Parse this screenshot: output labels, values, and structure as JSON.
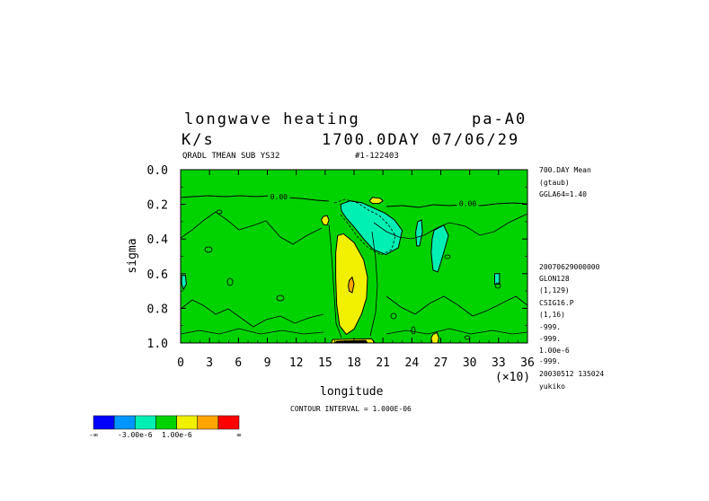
{
  "header": {
    "title_left": "longwave heating",
    "title_right": "pa-A0",
    "units": "K/s",
    "time": "1700.0DAY 07/06/29",
    "sub_left": "QRADL TMEAN SUB YS32",
    "sub_right": "#1-122403"
  },
  "side_info": [
    "700.DAY Mean",
    "(gtaub)",
    "GGLA64=1.40",
    "20070629000000",
    "GLON128",
    "(1,129)",
    "CSIG16.P",
    "(1,16)",
    "-999.",
    "-999.",
    "1.00e-6",
    "-999.",
    "20030512 135024",
    "yukiko"
  ],
  "contour_interval": "CONTOUR INTERVAL = 1.000E-06",
  "legend": {
    "labels": [
      "-∞",
      "-3.00e-6",
      "1.00e-6",
      "∞"
    ],
    "colors": [
      "#0000ff",
      "#0096ff",
      "#00f0b4",
      "#00d200",
      "#f0f000",
      "#ffa500",
      "#ff0000"
    ]
  },
  "chart_data": {
    "type": "heatmap",
    "title": "longwave heating",
    "xlabel": "longitude",
    "ylabel": "sigma",
    "x_multiplier_label": "(×10)",
    "xlim": [
      0,
      36
    ],
    "ylim": [
      1.0,
      0.0
    ],
    "x_ticks": [
      0,
      3,
      6,
      9,
      12,
      15,
      18,
      21,
      24,
      27,
      30,
      33,
      36
    ],
    "y_ticks": [
      0.0,
      0.2,
      0.4,
      0.6,
      0.8,
      1.0
    ],
    "x_tick_labels": [
      "0",
      "3",
      "6",
      "9",
      "12",
      "15",
      "18",
      "21",
      "24",
      "27",
      "30",
      "33",
      "36"
    ],
    "y_tick_labels": [
      "0.0",
      "0.2",
      "0.4",
      "0.6",
      "0.8",
      "1.0"
    ],
    "background_color": "#00d200",
    "contour_labels": [
      {
        "text": "0.00",
        "x": 10.2,
        "y": 0.16
      },
      {
        "text": "0.00",
        "x": 29.8,
        "y": 0.2
      }
    ],
    "regions": [
      {
        "level": "positive",
        "color": "#f0f000",
        "points": [
          [
            16.3,
            0.38
          ],
          [
            16.9,
            0.37
          ],
          [
            18.0,
            0.42
          ],
          [
            19.0,
            0.52
          ],
          [
            19.4,
            0.62
          ],
          [
            19.3,
            0.74
          ],
          [
            18.8,
            0.83
          ],
          [
            18.0,
            0.92
          ],
          [
            17.2,
            0.95
          ],
          [
            16.5,
            0.9
          ],
          [
            16.2,
            0.78
          ],
          [
            16.1,
            0.62
          ],
          [
            16.1,
            0.48
          ]
        ]
      },
      {
        "level": "positive",
        "color": "#f0f000",
        "points": [
          [
            19.9,
            0.16
          ],
          [
            20.7,
            0.165
          ],
          [
            21.0,
            0.18
          ],
          [
            20.6,
            0.195
          ],
          [
            19.9,
            0.195
          ],
          [
            19.6,
            0.18
          ]
        ]
      },
      {
        "level": "positive",
        "color": "#f0f000",
        "points": [
          [
            14.8,
            0.27
          ],
          [
            15.2,
            0.265
          ],
          [
            15.4,
            0.29
          ],
          [
            15.2,
            0.32
          ],
          [
            14.8,
            0.315
          ],
          [
            14.6,
            0.29
          ]
        ]
      },
      {
        "level": "positive",
        "color": "#f0f000",
        "points": [
          [
            26.2,
            0.95
          ],
          [
            26.6,
            0.94
          ],
          [
            26.8,
            0.97
          ],
          [
            26.7,
            1.0
          ],
          [
            26.1,
            1.0
          ],
          [
            26.0,
            0.97
          ]
        ]
      },
      {
        "level": "positive",
        "color": "#f0f000",
        "points": [
          [
            15.8,
            0.98
          ],
          [
            19.8,
            0.975
          ],
          [
            20.2,
            1.0
          ],
          [
            15.6,
            1.0
          ]
        ]
      },
      {
        "level": "high",
        "color": "#ffa500",
        "points": [
          [
            17.5,
            0.64
          ],
          [
            17.8,
            0.62
          ],
          [
            18.0,
            0.66
          ],
          [
            17.8,
            0.71
          ],
          [
            17.5,
            0.7
          ],
          [
            17.4,
            0.67
          ]
        ]
      },
      {
        "level": "negative",
        "color": "#00f0b4",
        "points": [
          [
            16.6,
            0.2
          ],
          [
            17.6,
            0.18
          ],
          [
            18.8,
            0.19
          ],
          [
            20.0,
            0.22
          ],
          [
            21.2,
            0.25
          ],
          [
            22.2,
            0.29
          ],
          [
            23.0,
            0.35
          ],
          [
            22.6,
            0.45
          ],
          [
            21.3,
            0.49
          ],
          [
            20.0,
            0.46
          ],
          [
            19.0,
            0.4
          ],
          [
            18.0,
            0.33
          ],
          [
            17.2,
            0.28
          ],
          [
            16.7,
            0.24
          ]
        ]
      },
      {
        "level": "negative",
        "color": "#00f0b4",
        "points": [
          [
            26.3,
            0.35
          ],
          [
            27.3,
            0.32
          ],
          [
            27.8,
            0.38
          ],
          [
            27.3,
            0.48
          ],
          [
            26.7,
            0.59
          ],
          [
            26.2,
            0.58
          ],
          [
            26.0,
            0.48
          ],
          [
            26.1,
            0.4
          ]
        ]
      },
      {
        "level": "negative",
        "color": "#00f0b4",
        "points": [
          [
            24.6,
            0.3
          ],
          [
            25.0,
            0.29
          ],
          [
            25.1,
            0.36
          ],
          [
            24.8,
            0.44
          ],
          [
            24.5,
            0.44
          ],
          [
            24.4,
            0.36
          ]
        ]
      },
      {
        "level": "negative",
        "color": "#00f0b4",
        "points": [
          [
            0.1,
            0.61
          ],
          [
            0.5,
            0.61
          ],
          [
            0.6,
            0.66
          ],
          [
            0.3,
            0.69
          ],
          [
            0.1,
            0.66
          ]
        ]
      },
      {
        "level": "negative",
        "color": "#00f0b4",
        "points": [
          [
            32.6,
            0.6
          ],
          [
            33.1,
            0.6
          ],
          [
            33.1,
            0.66
          ],
          [
            32.6,
            0.66
          ]
        ]
      },
      {
        "level": "lowest",
        "color": "#000000",
        "points": [
          [
            16.2,
            0.99
          ],
          [
            19.2,
            0.985
          ],
          [
            19.4,
            1.0
          ],
          [
            16.0,
            1.0
          ]
        ]
      }
    ]
  }
}
